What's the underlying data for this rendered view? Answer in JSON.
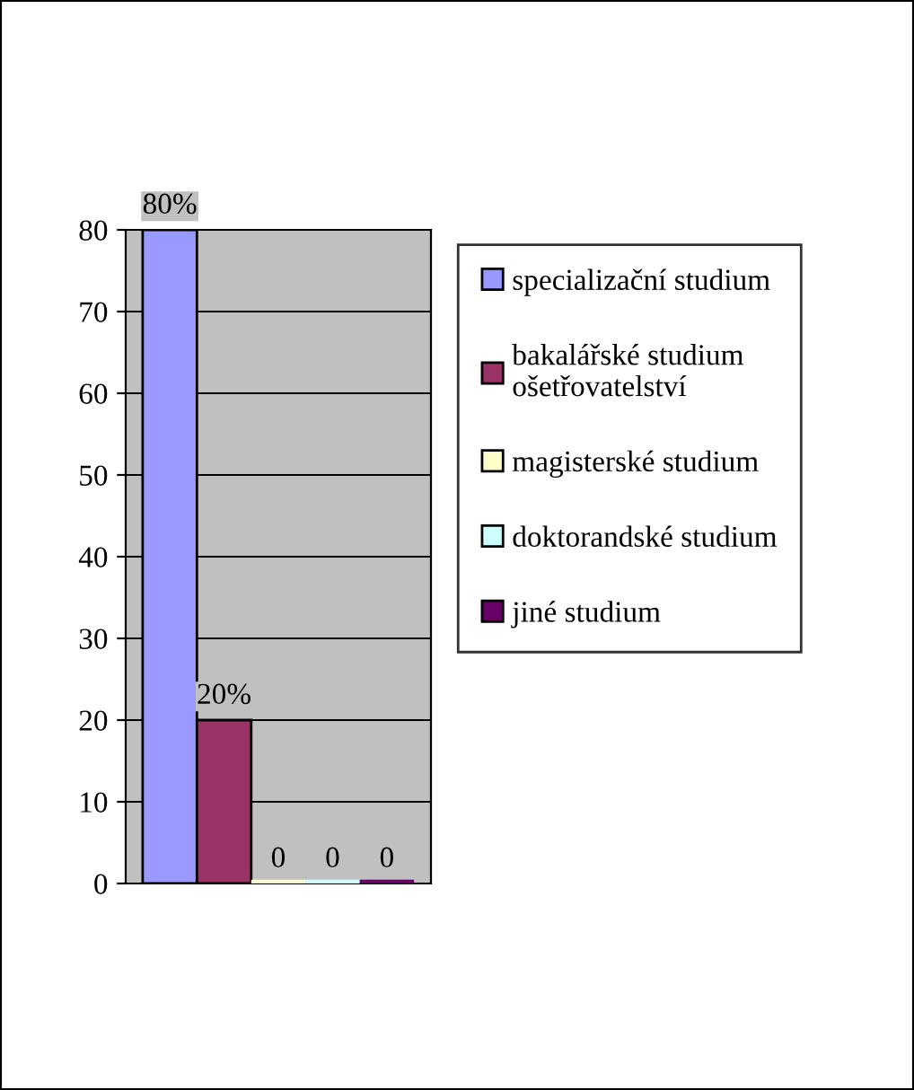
{
  "chart_data": {
    "type": "bar",
    "categories": [
      null
    ],
    "series": [
      {
        "name": "specializační studium",
        "color": "#9999ff",
        "values": [
          80
        ],
        "value_labels": [
          "80%"
        ]
      },
      {
        "name": "bakalářské studium\nošetřovatelství",
        "color": "#993366",
        "values": [
          20
        ],
        "value_labels": [
          "20%"
        ]
      },
      {
        "name": "magisterské studium",
        "color": "#ffffcc",
        "values": [
          0
        ],
        "value_labels": [
          "0"
        ]
      },
      {
        "name": "doktorandské studium",
        "color": "#ccffff",
        "values": [
          0
        ],
        "value_labels": [
          "0"
        ]
      },
      {
        "name": "jiné studium",
        "color": "#660066",
        "values": [
          0
        ],
        "value_labels": [
          "0"
        ]
      }
    ],
    "ylim": [
      0,
      80
    ],
    "yticks": [
      0,
      10,
      20,
      30,
      40,
      50,
      60,
      70,
      80
    ],
    "grid": "y",
    "legend": "right"
  }
}
